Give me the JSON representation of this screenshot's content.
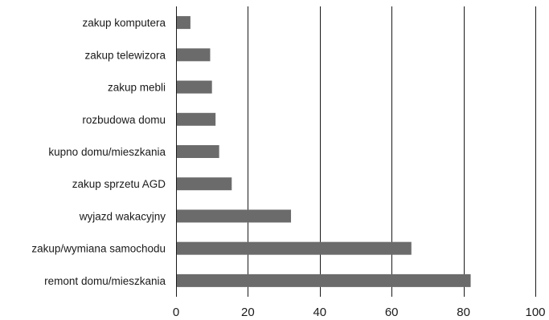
{
  "chart_data": {
    "type": "bar",
    "orientation": "horizontal",
    "categories": [
      "zakup komputera",
      "zakup telewizora",
      "zakup mebli",
      "rozbudowa domu",
      "kupno domu/mieszkania",
      "zakup sprzetu AGD",
      "wyjazd wakacyjny",
      "zakup/wymiana samochodu",
      "remont domu/mieszkania"
    ],
    "values": [
      4,
      9.5,
      10,
      11,
      12,
      15.5,
      32,
      65.5,
      82
    ],
    "xlim": [
      0,
      100
    ],
    "xticks": [
      0,
      20,
      40,
      60,
      80,
      100
    ],
    "grid": true,
    "bar_color": "#6b6b6b"
  }
}
